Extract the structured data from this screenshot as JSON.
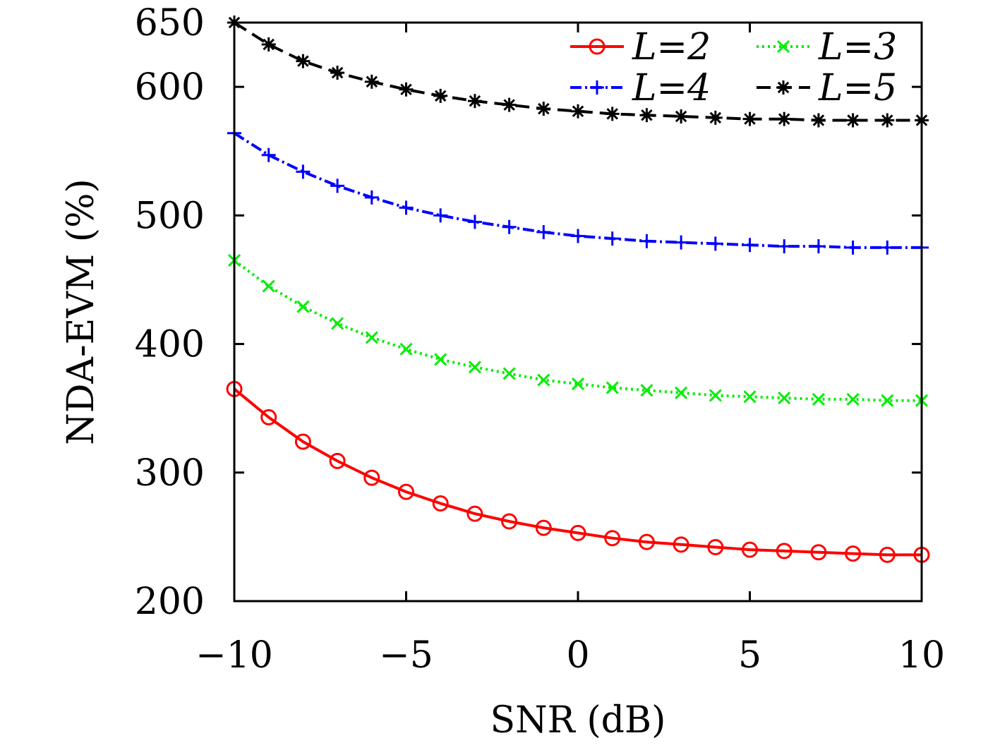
{
  "chart_data": {
    "type": "line",
    "title": "",
    "xlabel": "SNR (dB)",
    "ylabel": "NDA-EVM (%)",
    "xlim": [
      -10,
      10
    ],
    "ylim": [
      200,
      650
    ],
    "x_ticks": [
      -10,
      -5,
      0,
      5,
      10
    ],
    "x_tick_labels": [
      "−10",
      "−5",
      "0",
      "5",
      "10"
    ],
    "y_ticks": [
      200,
      300,
      400,
      500,
      600,
      650
    ],
    "y_tick_labels": [
      "200",
      "300",
      "400",
      "500",
      "600",
      "650"
    ],
    "grid": false,
    "legend_position": "top-right",
    "x": [
      -10,
      -9,
      -8,
      -7,
      -6,
      -5,
      -4,
      -3,
      -2,
      -1,
      0,
      1,
      2,
      3,
      4,
      5,
      6,
      7,
      8,
      9,
      10
    ],
    "series": [
      {
        "name": "L=2",
        "color": "#ff0000",
        "marker": "circle",
        "dash": "solid",
        "values": [
          365,
          343,
          324,
          309,
          296,
          285,
          276,
          268,
          262,
          257,
          253,
          249,
          246,
          244,
          242,
          240,
          239,
          238,
          237,
          236,
          236
        ]
      },
      {
        "name": "L=3",
        "color": "#00ee00",
        "marker": "x",
        "dash": "dotted",
        "values": [
          465,
          445,
          429,
          416,
          405,
          396,
          388,
          382,
          377,
          372,
          369,
          366,
          364,
          362,
          360,
          359,
          358,
          357,
          357,
          356,
          356
        ]
      },
      {
        "name": "L=4",
        "color": "#0000ff",
        "marker": "plus",
        "dash": "dashdot",
        "values": [
          564,
          547,
          534,
          523,
          514,
          506,
          500,
          495,
          491,
          487,
          484,
          482,
          480,
          479,
          478,
          477,
          476,
          476,
          475,
          475,
          475
        ]
      },
      {
        "name": "L=5",
        "color": "#000000",
        "marker": "asterisk",
        "dash": "dashed",
        "values": [
          650,
          633,
          620,
          611,
          604,
          598,
          593,
          589,
          586,
          583,
          581,
          579,
          578,
          577,
          576,
          575,
          575,
          574,
          574,
          574,
          574
        ]
      }
    ]
  }
}
